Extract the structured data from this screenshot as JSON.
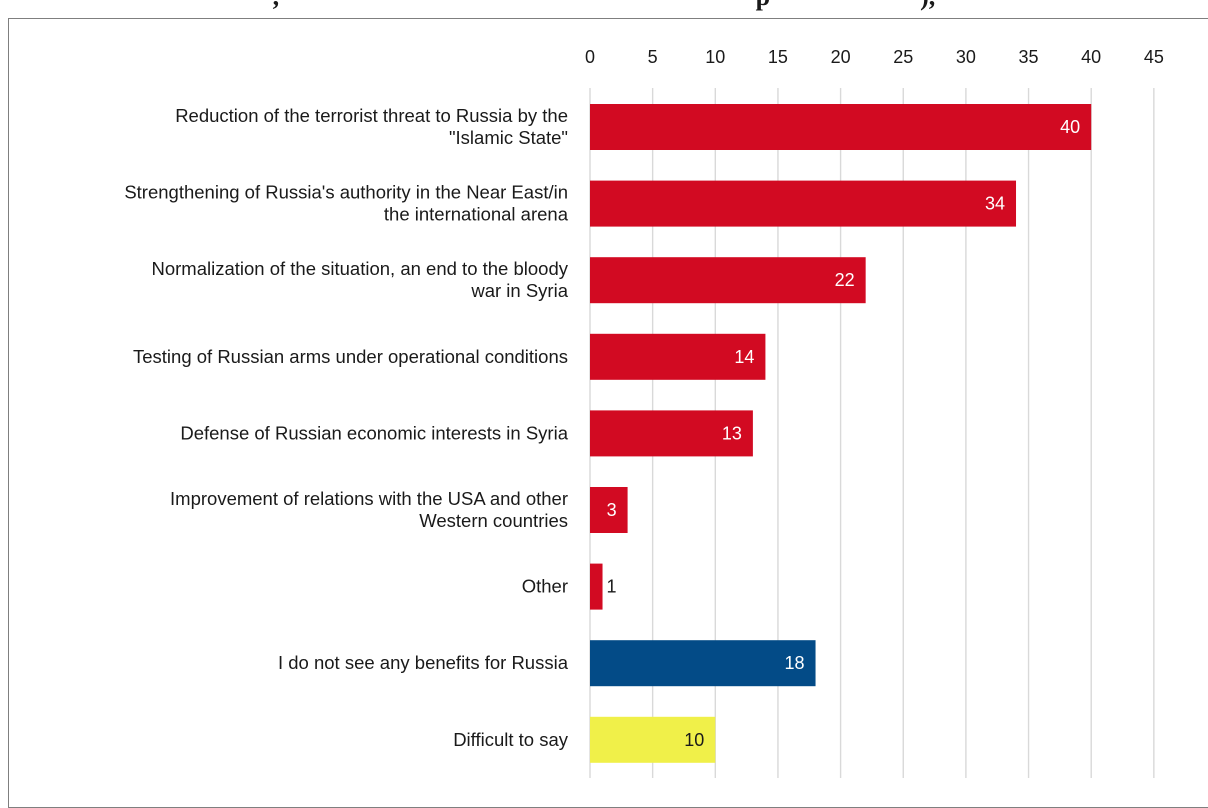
{
  "chart_data": {
    "type": "bar",
    "orientation": "horizontal",
    "title": ", ",
    "title_fragment": "p",
    "title_fragment_end": "),",
    "categories": [
      "Reduction of the terrorist threat to Russia by the \"Islamic State\"",
      "Strengthening of Russia's authority in the Near East/in the international arena",
      "Normalization of the situation, an end to the bloody war in Syria",
      "Testing of Russian arms under operational conditions",
      "Defense of Russian economic interests in Syria",
      "Improvement of relations with the USA and other Western countries",
      "Other",
      "I do not see any benefits for Russia",
      "Difficult to say"
    ],
    "category_lines": [
      [
        "Reduction of the terrorist threat to Russia by the",
        "\"Islamic State\""
      ],
      [
        "Strengthening of Russia's authority in the Near East/in",
        "the international arena"
      ],
      [
        "Normalization of the situation, an end to the bloody",
        "war in Syria"
      ],
      [
        "Testing of Russian arms under operational conditions"
      ],
      [
        "Defense of Russian economic interests in Syria"
      ],
      [
        "Improvement of relations with the USA and other",
        "Western countries"
      ],
      [
        "Other"
      ],
      [
        "I do not see any benefits for Russia"
      ],
      [
        "Difficult to say"
      ]
    ],
    "values": [
      40,
      34,
      22,
      14,
      13,
      3,
      1,
      18,
      10
    ],
    "colors": [
      "#d20a22",
      "#d20a22",
      "#d20a22",
      "#d20a22",
      "#d20a22",
      "#d20a22",
      "#d20a22",
      "#034b87",
      "#f0f049"
    ],
    "label_colors": [
      "#ffffff",
      "#ffffff",
      "#ffffff",
      "#ffffff",
      "#ffffff",
      "#ffffff",
      "#1a1a1a",
      "#ffffff",
      "#1a1a1a"
    ],
    "xlim": [
      0,
      45
    ],
    "xticks": [
      0,
      5,
      10,
      15,
      20,
      25,
      30,
      35,
      40,
      45
    ],
    "xaxis_position": "top",
    "grid": true,
    "grid_color": "#d9d9d9",
    "legend": "none",
    "xlabel": "",
    "ylabel": ""
  }
}
